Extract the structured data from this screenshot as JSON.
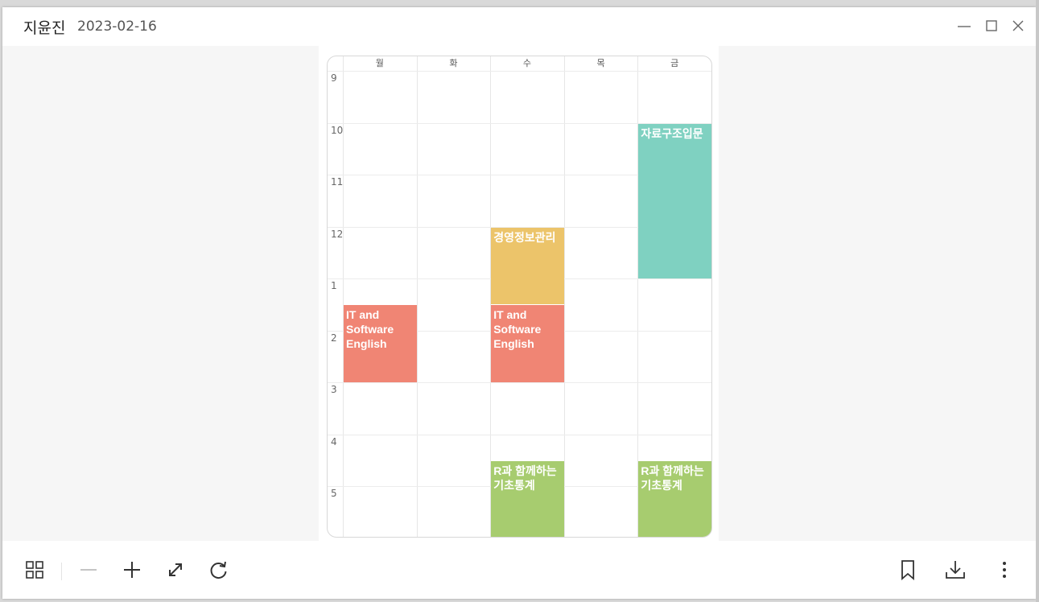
{
  "window": {
    "title_name": "지윤진",
    "title_date": "2023-02-16"
  },
  "timetable": {
    "days": [
      "월",
      "화",
      "수",
      "목",
      "금"
    ],
    "hours": [
      "9",
      "10",
      "11",
      "12",
      "1",
      "2",
      "3",
      "4",
      "5"
    ],
    "courses": [
      {
        "name": "자료구조입문",
        "day": 4,
        "start": 10,
        "end": 13,
        "color": "#7fd1c1"
      },
      {
        "name": "경영정보관리",
        "day": 2,
        "start": 12,
        "end": 13.5,
        "color": "#ecc46a"
      },
      {
        "name": "IT and Software English",
        "day": 0,
        "start": 13.5,
        "end": 15,
        "color": "#f08574"
      },
      {
        "name": "IT and Software English",
        "day": 2,
        "start": 13.5,
        "end": 15,
        "color": "#f08574"
      },
      {
        "name": "R과 함께하는 기초통계",
        "day": 2,
        "start": 16.5,
        "end": 18,
        "color": "#a7cc6f"
      },
      {
        "name": "R과 함께하는 기초통계",
        "day": 4,
        "start": 16.5,
        "end": 18,
        "color": "#a7cc6f"
      }
    ]
  },
  "toolbar": {
    "left_icons": [
      "grid-icon",
      "zoom-out-icon",
      "zoom-in-icon",
      "fit-screen-icon",
      "rotate-icon"
    ],
    "right_icons": [
      "bookmark-icon",
      "download-icon",
      "more-icon"
    ]
  }
}
